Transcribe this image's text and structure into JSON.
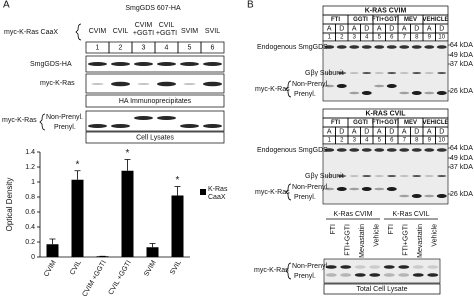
{
  "panel_a": {
    "label": "A",
    "title": "SmgGDS 607-HA",
    "row_label": "myc-K-Ras CaaX",
    "columns": [
      "CVIM",
      "CVIL",
      "CVIM +GGTI",
      "CVIL +GGTI",
      "SVIM",
      "SVIL"
    ],
    "lanes": [
      "1",
      "2",
      "3",
      "4",
      "5",
      "6"
    ],
    "ip_blots": [
      "SmgGDS-HA",
      "myc-K-Ras"
    ],
    "ip_caption": "HA Immunoprecipitates",
    "lysate_label": "myc-K-Ras",
    "lysate_bands": [
      "Non-Prenyl.",
      "Prenyl."
    ],
    "lysate_caption": "Cell Lysates",
    "chart": {
      "type": "bar",
      "y_label": "Optical Density",
      "categories": [
        "CVIM",
        "CVIL",
        "CVIM +GGTI",
        "CVIL +GGTI",
        "SVIM",
        "SVIL"
      ],
      "series": [
        {
          "name": "K-Ras CaaX",
          "color": "#000000",
          "values": [
            0.17,
            1.03,
            0.01,
            1.15,
            0.13,
            0.82
          ],
          "errors": [
            0.07,
            0.12,
            0,
            0.15,
            0.05,
            0.12
          ]
        }
      ],
      "ylim": [
        0,
        1.4
      ],
      "yticks": [
        0,
        0.2,
        0.4,
        0.6,
        0.8,
        1,
        1.2,
        1.4
      ],
      "annotations": [
        {
          "category": "CVIL",
          "text": "*"
        },
        {
          "category": "CVIL +GGTI",
          "text": "*"
        },
        {
          "category": "SVIL",
          "text": "*"
        }
      ]
    }
  },
  "panel_b": {
    "label": "B",
    "blots": [
      {
        "title": "K-RAS CVIM",
        "conditions": [
          "FTI",
          "GGTI",
          "FTI+GGTI",
          "MEV",
          "VEHICLE"
        ],
        "treatments": [
          "A",
          "D",
          "A",
          "D",
          "A",
          "D",
          "A",
          "D",
          "A",
          "D"
        ],
        "lanes": [
          "1",
          "2",
          "3",
          "4",
          "5",
          "6",
          "7",
          "8",
          "9",
          "10"
        ],
        "endogenous": "Endogenous SmgGDS",
        "subunit": "Gβγ Subunit",
        "myc_label": "myc-K-Ras",
        "bands": [
          "Non-Prenyl.",
          "Prenyl."
        ],
        "markers": [
          "64 kDA",
          "49 kDA",
          "37 kDA",
          "26 kDA"
        ]
      },
      {
        "title": "K-RAS CVIL",
        "conditions": [
          "FTI",
          "GGTI",
          "FTI+GGTI",
          "MEV",
          "VEHICLE"
        ],
        "treatments": [
          "A",
          "D",
          "A",
          "D",
          "A",
          "D",
          "A",
          "D",
          "A",
          "D"
        ],
        "lanes": [
          "1",
          "2",
          "3",
          "4",
          "5",
          "6",
          "7",
          "8",
          "9",
          "10"
        ],
        "endogenous": "Endogenous SmgGDS",
        "subunit": "Gβγ Subunit",
        "myc_label": "myc-K-Ras",
        "bands": [
          "Non-Prenyl.",
          "Prenyl."
        ],
        "markers": [
          "64 kDA",
          "49 kDA",
          "37 kDA",
          "26 kDA"
        ]
      }
    ],
    "lysate": {
      "groups": [
        "K-Ras CVIM",
        "K-Ras CVIL"
      ],
      "treatments": [
        "FTI",
        "FTI+GGTI",
        "Mevastatin",
        "Vehicle",
        "FTI",
        "FTI+GGTI",
        "Mevastatin",
        "Vehicle"
      ],
      "label": "myc-K-Ras",
      "bands": [
        "Non-Prenyl.",
        "Prenyl."
      ],
      "caption": "Total Cell Lysate"
    }
  }
}
